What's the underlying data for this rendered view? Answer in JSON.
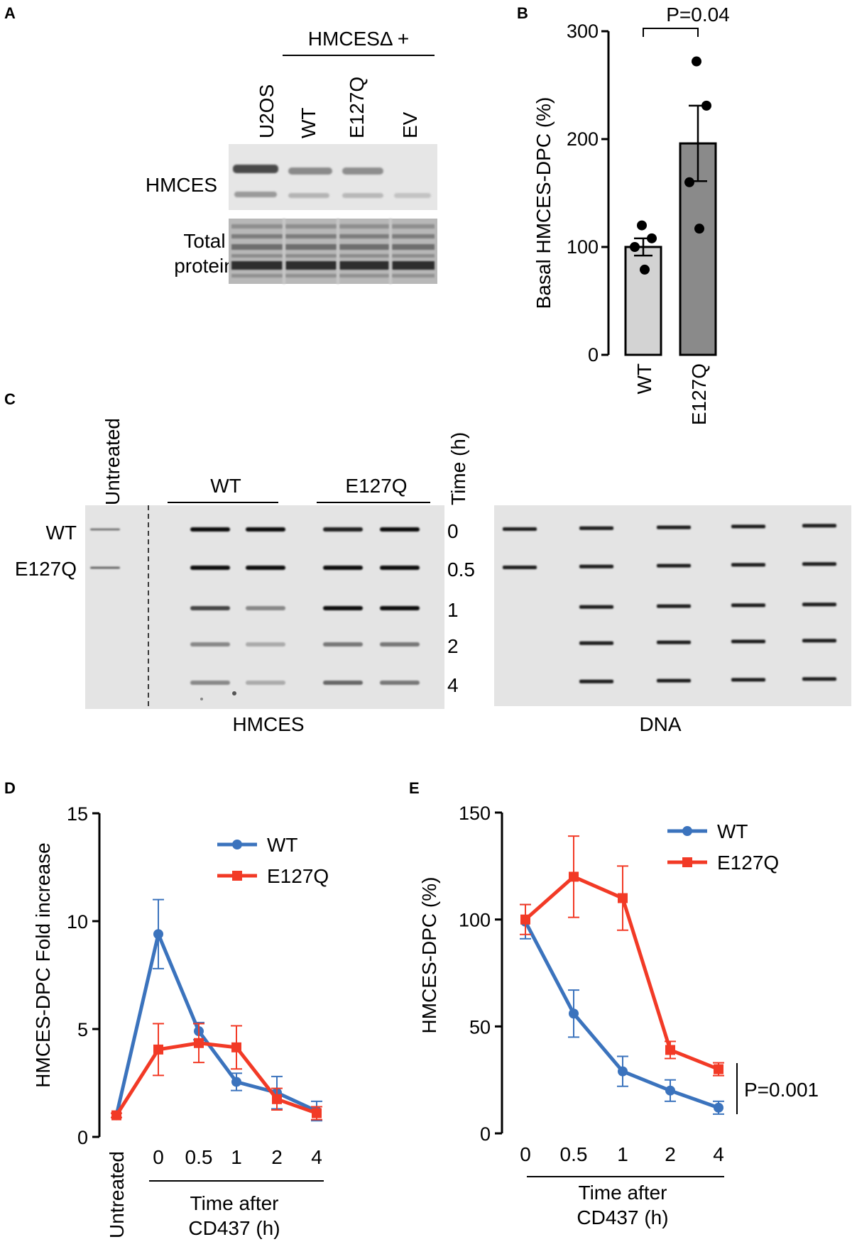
{
  "panel_labels": {
    "a": "A",
    "b": "B",
    "c": "C",
    "d": "D",
    "e": "E"
  },
  "panel_a": {
    "group_header": "HMCESΔ +",
    "lanes": [
      "U2OS",
      "WT",
      "E127Q",
      "EV"
    ],
    "blot_labels": {
      "hmces": "HMCES",
      "total_line1": "Total",
      "total_line2": "protein"
    }
  },
  "colors": {
    "wt": "#3b73bd",
    "e127q": "#f23a26",
    "bar_wt": "#d3d3d3",
    "bar_e127q": "#8a8a8a"
  },
  "panel_c": {
    "untreated": "Untreated",
    "row_labels": [
      "WT",
      "E127Q"
    ],
    "group_wt": "WT",
    "group_e127q": "E127Q",
    "time_label": "Time (h)",
    "times": [
      "0",
      "0.5",
      "1",
      "2",
      "4"
    ],
    "blot_left_caption": "HMCES",
    "blot_right_caption": "DNA"
  },
  "chart_data": [
    {
      "type": "bar",
      "categories": [
        "WT",
        "E127Q"
      ],
      "values": [
        100,
        196
      ],
      "errors": [
        8,
        35
      ],
      "points": [
        [
          120,
          108,
          100,
          79
        ],
        [
          272,
          231,
          160,
          117
        ]
      ],
      "ylabel": "Basal HMCES-DPC (%)",
      "ylim": [
        0,
        300
      ],
      "yticks": [
        "0",
        "100",
        "200",
        "300"
      ],
      "annotation": "P=0.04",
      "grid": false
    },
    {
      "type": "line",
      "categories": [
        "Untreated",
        "0",
        "0.5",
        "1",
        "2",
        "4"
      ],
      "series": [
        {
          "name": "WT",
          "values": [
            1,
            9.4,
            4.9,
            2.55,
            2.05,
            1.2
          ],
          "errors": [
            0.1,
            1.6,
            0.4,
            0.4,
            0.75,
            0.45
          ]
        },
        {
          "name": "E127Q",
          "values": [
            1,
            4.05,
            4.35,
            4.15,
            1.75,
            1.1
          ],
          "errors": [
            0.1,
            1.2,
            0.9,
            1.0,
            0.5,
            0.3
          ]
        }
      ],
      "ylabel": "HMCES-DPC Fold increase",
      "xlabel_line1": "Time after",
      "xlabel_line2": "CD437 (h)",
      "ylim": [
        0,
        15
      ],
      "yticks": [
        "0",
        "5",
        "10",
        "15"
      ],
      "legend": "top-right",
      "grid": false
    },
    {
      "type": "line",
      "categories": [
        "0",
        "0.5",
        "1",
        "2",
        "4"
      ],
      "series": [
        {
          "name": "WT",
          "values": [
            99,
            56,
            29,
            20,
            12
          ],
          "errors": [
            8,
            11,
            7,
            5,
            3
          ]
        },
        {
          "name": "E127Q",
          "values": [
            100,
            120,
            110,
            39,
            30
          ],
          "errors": [
            7,
            19,
            15,
            4,
            3
          ]
        }
      ],
      "ylabel": "HMCES-DPC (%)",
      "xlabel_line1": "Time after",
      "xlabel_line2": "CD437 (h)",
      "ylim": [
        0,
        150
      ],
      "yticks": [
        "0",
        "50",
        "100",
        "150"
      ],
      "annotation": "P=0.001",
      "legend": "top-right",
      "grid": false
    }
  ]
}
